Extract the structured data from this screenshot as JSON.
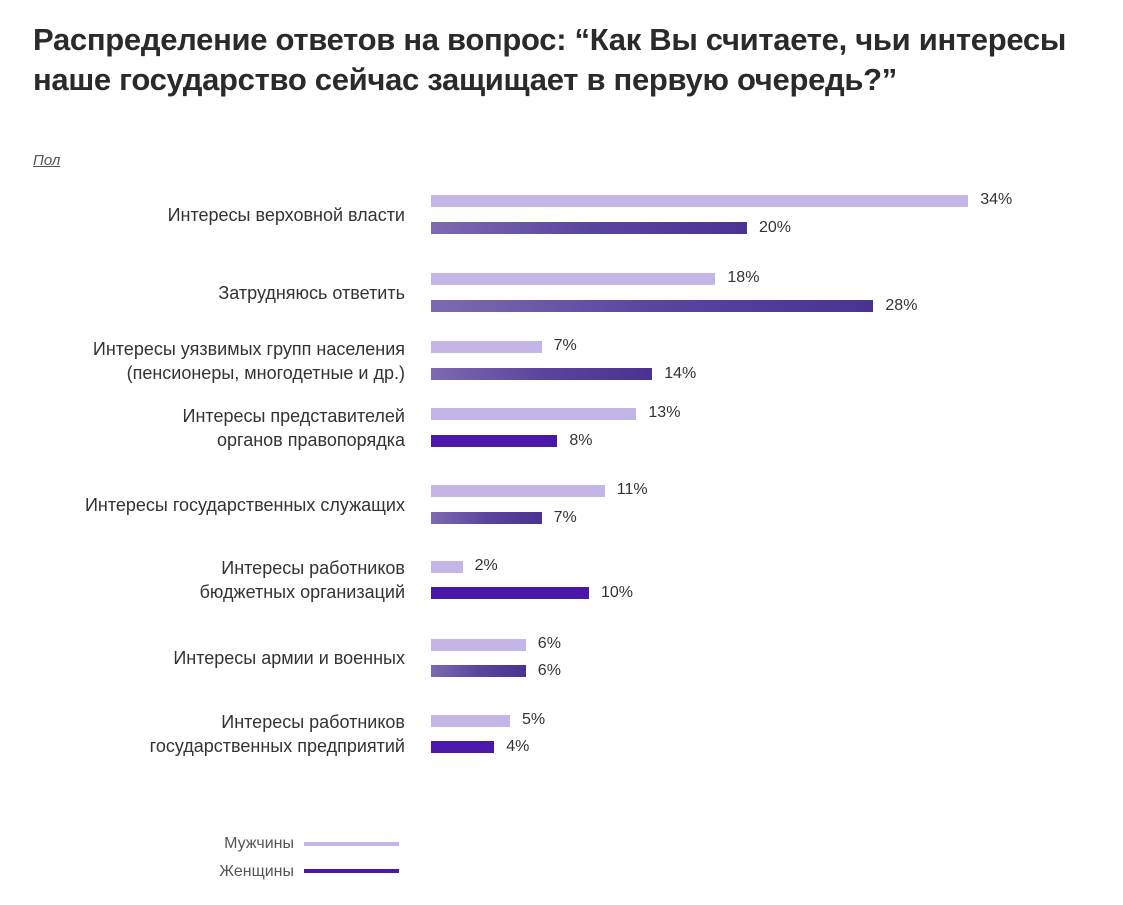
{
  "title": "Распределение ответов на вопрос: “Как Вы считаете, чьи интересы наше государство сейчас защищает в первую очередь?”",
  "subtitle": "Пол",
  "legend": {
    "men": {
      "label": "Мужчины",
      "color": "#c3b6e6"
    },
    "women": {
      "label": "Женщины",
      "color": "#4b17a8"
    }
  },
  "rows": [
    {
      "label": [
        "Интересы верховной власти"
      ],
      "men": "34%",
      "women": "20%"
    },
    {
      "label": [
        "Затрудняюсь ответить"
      ],
      "men": "18%",
      "women": "28%"
    },
    {
      "label": [
        "Интересы уязвимых групп населения",
        "(пенсионеры, многодетные и др.)"
      ],
      "men": "7%",
      "women": "14%"
    },
    {
      "label": [
        "Интересы представителей",
        "органов правопорядка"
      ],
      "men": "13%",
      "women": "8%"
    },
    {
      "label": [
        "Интересы государственных служащих"
      ],
      "men": "11%",
      "women": "7%"
    },
    {
      "label": [
        "Интересы работников",
        "бюджетных организаций"
      ],
      "men": "2%",
      "women": "10%"
    },
    {
      "label": [
        "Интересы армии и военных"
      ],
      "men": "6%",
      "women": "6%"
    },
    {
      "label": [
        "Интересы работников",
        "государственных предприятий"
      ],
      "men": "5%",
      "women": "4%"
    }
  ],
  "chart_data": {
    "type": "bar",
    "orientation": "horizontal",
    "title": "Распределение ответов на вопрос: “Как Вы считаете, чьи интересы наше государство сейчас защищает в первую очередь?”",
    "subtitle": "Пол",
    "categories": [
      "Интересы верховной власти",
      "Затрудняюсь ответить",
      "Интересы уязвимых групп населения (пенсионеры, многодетные и др.)",
      "Интересы представителей органов правопорядка",
      "Интересы государственных служащих",
      "Интересы работников бюджетных организаций",
      "Интересы армии и военных",
      "Интересы работников государственных предприятий"
    ],
    "series": [
      {
        "name": "Мужчины",
        "values": [
          34,
          18,
          7,
          13,
          11,
          2,
          6,
          5
        ],
        "color": "#c3b6e6"
      },
      {
        "name": "Женщины",
        "values": [
          20,
          28,
          14,
          8,
          7,
          10,
          6,
          4
        ],
        "color": "#4b17a8"
      }
    ],
    "unit": "%",
    "xlabel": "",
    "ylabel": "",
    "grid": false,
    "legend_position": "bottom-left"
  }
}
